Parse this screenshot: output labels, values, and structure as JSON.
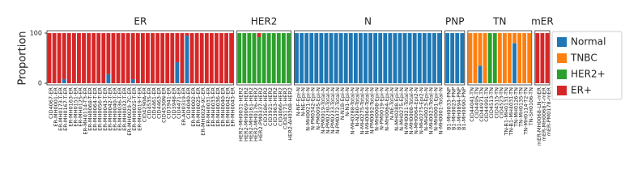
{
  "chart_data": {
    "type": "bar",
    "stacked": true,
    "ylabel": "Proportion",
    "ylim": [
      0,
      100
    ],
    "yticks": [
      0,
      100
    ],
    "series": [
      {
        "name": "Normal",
        "color": "#1f77b4"
      },
      {
        "name": "TNBC",
        "color": "#ff7f0e"
      },
      {
        "name": "HER2+",
        "color": "#2ca02c"
      },
      {
        "name": "ER+",
        "color": "#d62728"
      }
    ],
    "panels": [
      {
        "title": "ER",
        "categories": [
          "CID4067-ER",
          "ER-MH0001-ER",
          "ER-MH0173-T-ER",
          "ER-MH0167-T-ER",
          "ER-MH0163-ER",
          "ER-MH0151-ER",
          "ER-MH0125-ER",
          "ER-MH0114-T3-ER",
          "ER-MH0068-T-ER",
          "ER-MH0064-T-ER",
          "ER-MH0056-T-ER",
          "ER-MH0043-T-ER",
          "ER-MH0042-T-ER",
          "ER-MH0040-T-ER",
          "ER-MH0036-T-ER",
          "ER-MH0032-T-ER",
          "ER-MH0029-7C-ER",
          "ER-MH0025-T-ER",
          "ER-MH0019-T-ER",
          "CID4290A-ER",
          "CID4535-ER",
          "CID4461-ER",
          "CID4463-ER",
          "CID4530N-ER",
          "CID3941-ER",
          "CID3948-ER",
          "CID4471-ER",
          "ER-AH0319-ER",
          "CID4040-ER",
          "ER-MH0002-ER",
          "ER-MH0025-ER",
          "ER-MH0029-9C-ER",
          "ER-MH0031-ER",
          "ER-MH0033-ER",
          "ER-MH0036-ER",
          "ER-MH0040-ER",
          "ER-MH0042-ER",
          "ER-MH0043-ER"
        ],
        "values": [
          [
            0,
            0,
            0,
            8,
            0,
            0,
            0,
            0,
            0,
            0,
            0,
            0,
            18,
            0,
            0,
            0,
            0,
            8,
            0,
            0,
            0,
            0,
            0,
            0,
            0,
            0,
            42,
            0,
            95,
            0,
            0,
            0,
            0,
            0,
            0,
            0,
            0,
            0
          ],
          [
            0,
            0,
            0,
            0,
            0,
            0,
            0,
            0,
            0,
            0,
            0,
            0,
            0,
            0,
            0,
            0,
            0,
            0,
            0,
            0,
            0,
            0,
            0,
            0,
            0,
            0,
            0,
            0,
            0,
            0,
            0,
            0,
            0,
            0,
            0,
            0,
            0,
            0
          ],
          [
            0,
            0,
            0,
            0,
            0,
            0,
            0,
            0,
            0,
            0,
            0,
            0,
            0,
            0,
            0,
            0,
            0,
            0,
            0,
            0,
            0,
            0,
            0,
            0,
            0,
            0,
            0,
            0,
            0,
            0,
            0,
            0,
            0,
            0,
            0,
            0,
            0,
            0
          ],
          [
            100,
            100,
            100,
            92,
            100,
            100,
            100,
            100,
            100,
            100,
            100,
            100,
            82,
            100,
            100,
            100,
            100,
            92,
            100,
            100,
            100,
            100,
            100,
            100,
            100,
            100,
            58,
            100,
            5,
            100,
            100,
            100,
            100,
            100,
            100,
            100,
            100,
            100
          ]
        ]
      },
      {
        "title": "HER2",
        "categories": [
          "HER2-MH0031-HER2",
          "HER2-MH0069-HER2",
          "HER2-MH0161-HER2",
          "HER2-MH0176-HER2",
          "HER2-PM0337-HER2",
          "CID3586-HER2",
          "CID3921-HER2",
          "CID3963-HER2",
          "CID4066-HER2",
          "CID45171-HER2",
          "HER2-AH0308-HER2"
        ],
        "values": [
          [
            0,
            0,
            0,
            0,
            0,
            0,
            0,
            0,
            0,
            0,
            0
          ],
          [
            0,
            0,
            0,
            0,
            0,
            0,
            0,
            0,
            0,
            0,
            0
          ],
          [
            100,
            100,
            100,
            100,
            92,
            100,
            100,
            100,
            100,
            100,
            100
          ],
          [
            0,
            0,
            0,
            0,
            8,
            0,
            0,
            0,
            0,
            0,
            0
          ]
        ]
      },
      {
        "title": "N",
        "categories": [
          "N-NF-Epi-N",
          "N-NE-Epi-N",
          "N-MH0021-Epi-N",
          "N-PM0342-Epi-N",
          "N-PM0095-Epi-N",
          "N-PM0019-Total-N",
          "N-PM0230-Total-N",
          "N-PM0233-Total-N",
          "N-PM0372-Total-N",
          "N-N1B-Epi-N",
          "N-N1-Epi-N",
          "N-MH0288-Total-N",
          "N-N280-Total-N",
          "N-MH0275-Total-N",
          "N-MH0064-Total-N",
          "N-PM0092-Total-N",
          "N-MH0008-Epi-N",
          "N-PM0019-Epi-N",
          "N-MH0064-Epi-N",
          "N-NE-Total-N",
          "N-MH0288-Epi-N",
          "N-MH0275-Epi-N",
          "N-MH0021-Total-N",
          "N-MH0008-Total-N",
          "N-MH0064-Epi2-N",
          "N-MH0275-Epi2-N",
          "N-MH0023-Epi-N",
          "N-MH0023-Total-N",
          "N-MH0001-Epi-N",
          "N-MH0001-Total-N"
        ],
        "values": [
          [
            100,
            100,
            100,
            100,
            100,
            100,
            100,
            100,
            100,
            100,
            100,
            100,
            100,
            100,
            100,
            100,
            100,
            100,
            100,
            100,
            100,
            100,
            100,
            100,
            100,
            100,
            100,
            100,
            100,
            100
          ],
          [
            0,
            0,
            0,
            0,
            0,
            0,
            0,
            0,
            0,
            0,
            0,
            0,
            0,
            0,
            0,
            0,
            0,
            0,
            0,
            0,
            0,
            0,
            0,
            0,
            0,
            0,
            0,
            0,
            0,
            0
          ],
          [
            0,
            0,
            0,
            0,
            0,
            0,
            0,
            0,
            0,
            0,
            0,
            0,
            0,
            0,
            0,
            0,
            0,
            0,
            0,
            0,
            0,
            0,
            0,
            0,
            0,
            0,
            0,
            0,
            0,
            0
          ],
          [
            0,
            0,
            0,
            0,
            0,
            0,
            0,
            0,
            0,
            0,
            0,
            0,
            0,
            0,
            0,
            0,
            0,
            0,
            0,
            0,
            0,
            0,
            0,
            0,
            0,
            0,
            0,
            0,
            0,
            0
          ]
        ]
      },
      {
        "title": "PNP",
        "categories": [
          "B1-MH0033-PNP",
          "B1-MH0023-PNP",
          "B1-MH0894-PNP",
          "B1-MH0090-PNP"
        ],
        "values": [
          [
            100,
            100,
            100,
            100
          ],
          [
            0,
            0,
            0,
            0
          ],
          [
            0,
            0,
            0,
            0
          ],
          [
            0,
            0,
            0,
            0
          ]
        ]
      },
      {
        "title": "TN",
        "categories": [
          "CID44041-TN",
          "CID4495-TN",
          "CID44971-TN",
          "CID44991-TN",
          "CID4513-TN",
          "CID4515-TN",
          "CID4523-TN",
          "TN-B1-MH0131-TN",
          "TN-B1-MH4031-TN",
          "TN-MH0126-TN",
          "TN-MH0135-TN",
          "TN-MH0114-T2-TN",
          "TN-SH0106-TN"
        ],
        "values": [
          [
            0,
            0,
            35,
            0,
            0,
            0,
            0,
            0,
            0,
            80,
            0,
            0,
            0
          ],
          [
            100,
            100,
            65,
            100,
            0,
            0,
            100,
            100,
            100,
            20,
            100,
            100,
            100
          ],
          [
            0,
            0,
            0,
            0,
            100,
            100,
            0,
            0,
            0,
            0,
            0,
            0,
            0
          ],
          [
            0,
            0,
            0,
            0,
            0,
            0,
            0,
            0,
            0,
            0,
            0,
            0,
            0
          ]
        ]
      },
      {
        "title": "mER",
        "categories": [
          "mER-MH0068-LN-mER",
          "mER-MH0068-T-mER",
          "mER-PM0178-mER"
        ],
        "values": [
          [
            0,
            0,
            0
          ],
          [
            0,
            0,
            0
          ],
          [
            0,
            0,
            0
          ],
          [
            100,
            100,
            100
          ]
        ]
      }
    ]
  }
}
